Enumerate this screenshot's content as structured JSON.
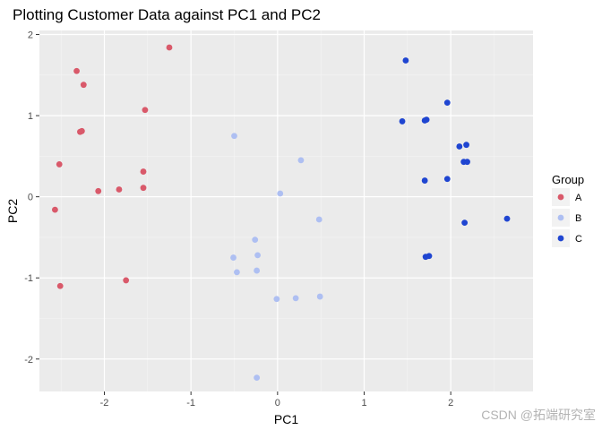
{
  "chart_data": {
    "type": "scatter",
    "title": "Plotting Customer Data against PC1 and PC2",
    "xlabel": "PC1",
    "ylabel": "PC2",
    "xlim": [
      -2.75,
      2.95
    ],
    "ylim": [
      -2.4,
      2.05
    ],
    "xticks": [
      -2,
      -1,
      0,
      1,
      2
    ],
    "yticks": [
      -2,
      -1,
      0,
      1,
      2
    ],
    "grid": true,
    "legend": {
      "title": "Group",
      "placement": "right"
    },
    "series": [
      {
        "name": "A",
        "color": "#d9596a",
        "points": [
          [
            -1.25,
            1.84
          ],
          [
            -2.32,
            1.55
          ],
          [
            -2.24,
            1.38
          ],
          [
            -1.53,
            1.07
          ],
          [
            -2.28,
            0.8
          ],
          [
            -2.26,
            0.81
          ],
          [
            -2.52,
            0.4
          ],
          [
            -1.55,
            0.31
          ],
          [
            -2.07,
            0.07
          ],
          [
            -1.83,
            0.09
          ],
          [
            -1.55,
            0.11
          ],
          [
            -2.57,
            -0.16
          ],
          [
            -2.51,
            -1.1
          ],
          [
            -1.75,
            -1.03
          ]
        ]
      },
      {
        "name": "B",
        "color": "#aebff2",
        "points": [
          [
            -0.5,
            0.75
          ],
          [
            0.27,
            0.45
          ],
          [
            0.03,
            0.04
          ],
          [
            0.48,
            -0.28
          ],
          [
            -0.26,
            -0.53
          ],
          [
            -0.23,
            -0.72
          ],
          [
            -0.51,
            -0.75
          ],
          [
            -0.47,
            -0.93
          ],
          [
            -0.24,
            -0.91
          ],
          [
            -0.01,
            -1.26
          ],
          [
            0.21,
            -1.25
          ],
          [
            0.49,
            -1.23
          ],
          [
            -0.24,
            -2.23
          ]
        ]
      },
      {
        "name": "C",
        "color": "#1f45d1",
        "points": [
          [
            1.48,
            1.68
          ],
          [
            1.96,
            1.16
          ],
          [
            1.44,
            0.93
          ],
          [
            1.7,
            0.94
          ],
          [
            1.72,
            0.95
          ],
          [
            2.1,
            0.62
          ],
          [
            2.18,
            0.64
          ],
          [
            2.15,
            0.43
          ],
          [
            2.19,
            0.43
          ],
          [
            1.7,
            0.2
          ],
          [
            1.96,
            0.22
          ],
          [
            2.16,
            -0.32
          ],
          [
            2.65,
            -0.27
          ],
          [
            1.71,
            -0.74
          ],
          [
            1.75,
            -0.73
          ]
        ]
      }
    ]
  },
  "watermark": "CSDN @拓端研究室"
}
